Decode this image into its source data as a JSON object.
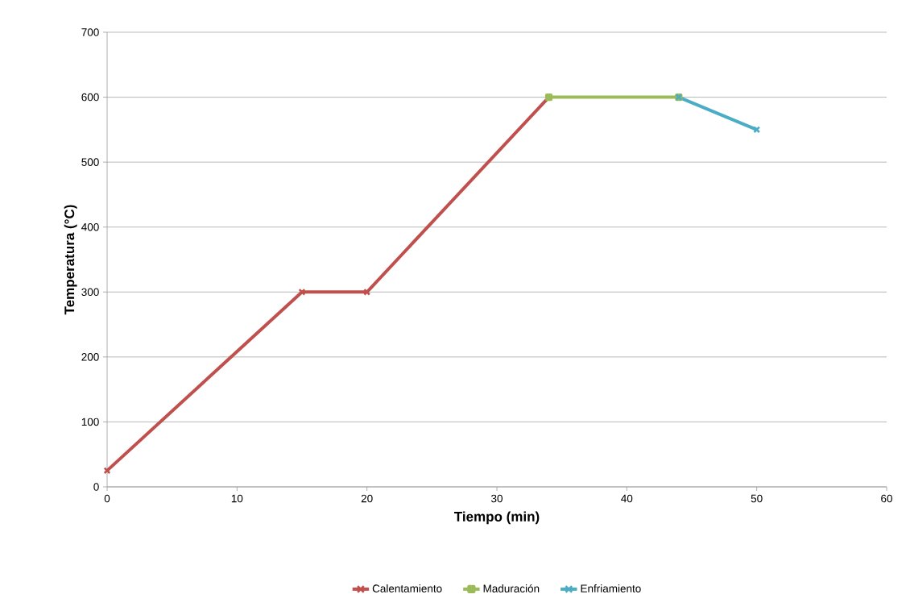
{
  "chart_data": {
    "type": "line",
    "xlabel": "Tiempo (min)",
    "ylabel": "Temperatura (°C)",
    "xlim": [
      0,
      60
    ],
    "xticks": [
      0,
      10,
      20,
      30,
      40,
      50,
      60
    ],
    "ylim": [
      0,
      700
    ],
    "yticks": [
      0,
      100,
      200,
      300,
      400,
      500,
      600,
      700
    ],
    "grid": "y",
    "legend": "bottom",
    "line_style": "solid",
    "series": [
      {
        "name": "Calentamiento",
        "color": "#c0504d",
        "marker": "cross",
        "x": [
          0,
          15,
          20,
          34
        ],
        "values": [
          25,
          300,
          300,
          600
        ]
      },
      {
        "name": "Maduración",
        "color": "#9bbb59",
        "marker": "square",
        "x": [
          34,
          44
        ],
        "values": [
          600,
          600
        ]
      },
      {
        "name": "Enfriamiento",
        "color": "#4bacc6",
        "marker": "cross",
        "x": [
          44,
          50
        ],
        "values": [
          600,
          550
        ]
      }
    ]
  }
}
